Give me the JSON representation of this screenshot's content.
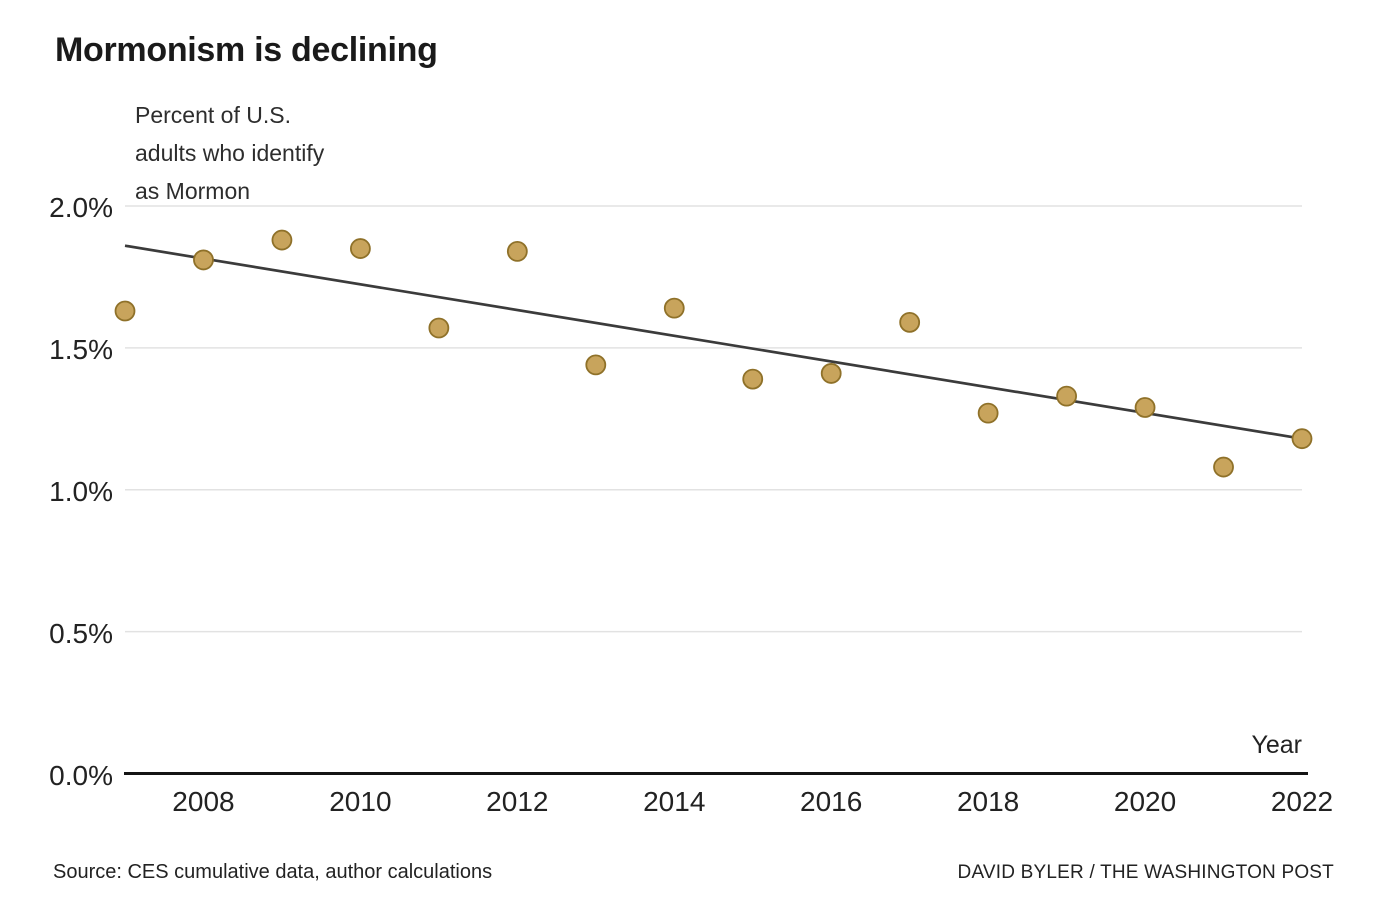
{
  "title": "Mormonism is declining",
  "subtitle_lines": [
    "Percent of U.S.",
    "adults who identify",
    "as Mormon"
  ],
  "footer": {
    "source": "Source: CES cumulative data, author calculations",
    "credit": "DAVID BYLER / THE WASHINGTON POST"
  },
  "chart_data": {
    "type": "scatter",
    "title": "Mormonism is declining",
    "subtitle": "Percent of U.S. adults who identify as Mormon",
    "xlabel": "Year",
    "ylabel": "Percent of U.S. adults who identify as Mormon",
    "xlim": [
      2007,
      2022
    ],
    "ylim": [
      0.0,
      2.0
    ],
    "grid": true,
    "legend": "none",
    "x": [
      2007,
      2008,
      2009,
      2010,
      2011,
      2012,
      2013,
      2014,
      2015,
      2016,
      2017,
      2018,
      2019,
      2020,
      2021,
      2022
    ],
    "series": [
      {
        "name": "Percent of U.S. adults who identify as Mormon",
        "values": [
          1.63,
          1.81,
          1.88,
          1.85,
          1.57,
          1.84,
          1.44,
          1.64,
          1.39,
          1.41,
          1.59,
          1.27,
          1.33,
          1.29,
          1.08,
          1.18
        ]
      }
    ],
    "trend_line": {
      "x": [
        2007,
        2022
      ],
      "y": [
        1.86,
        1.18
      ]
    },
    "x_ticks": [
      {
        "value": 2008,
        "label": "2008"
      },
      {
        "value": 2010,
        "label": "2010"
      },
      {
        "value": 2012,
        "label": "2012"
      },
      {
        "value": 2014,
        "label": "2014"
      },
      {
        "value": 2016,
        "label": "2016"
      },
      {
        "value": 2018,
        "label": "2018"
      },
      {
        "value": 2020,
        "label": "2020"
      },
      {
        "value": 2022,
        "label": "2022"
      }
    ],
    "y_ticks": [
      {
        "value": 2.0,
        "label": "2.0%"
      },
      {
        "value": 1.5,
        "label": "1.5%"
      },
      {
        "value": 1.0,
        "label": "1.0%"
      },
      {
        "value": 0.5,
        "label": "0.5%"
      },
      {
        "value": 0.0,
        "label": "0.0%"
      }
    ],
    "colors": {
      "point_fill": "#C8A45C",
      "point_stroke": "#8F7129",
      "trend_line": "#3B3B3B",
      "gridline": "#E2E2E2",
      "axis_line": "#141414",
      "text": "#222222"
    }
  }
}
